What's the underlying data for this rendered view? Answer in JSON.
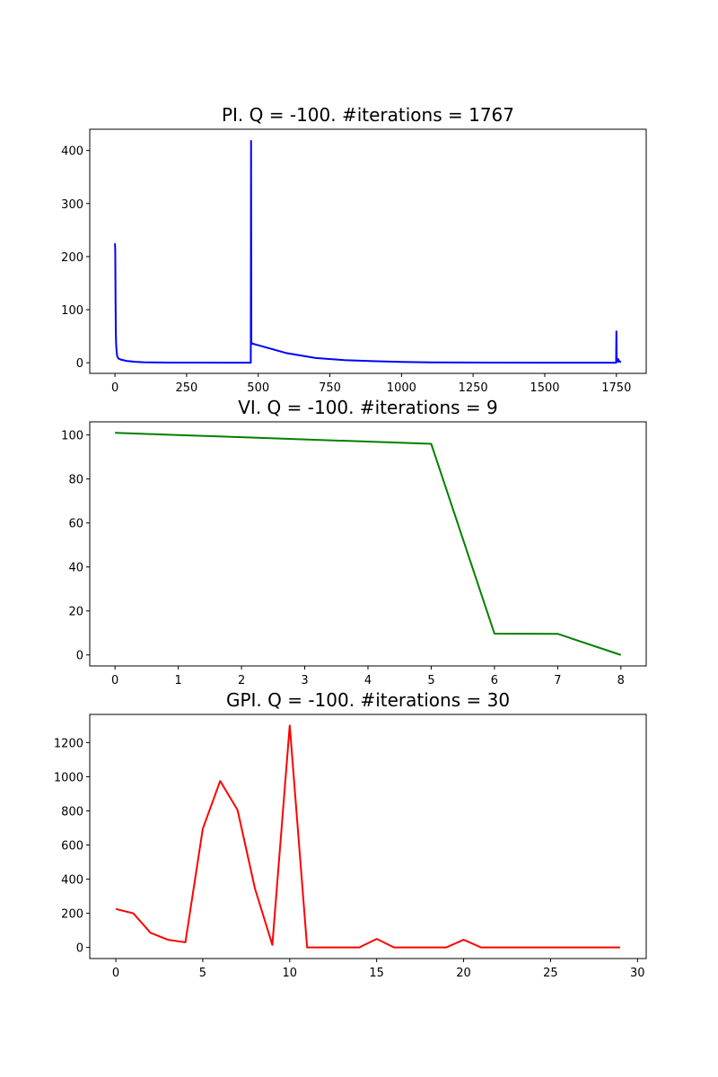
{
  "chart_data": [
    {
      "type": "line",
      "title": "PI. Q = -100. #iterations = 1767",
      "xlabel": "",
      "ylabel": "",
      "xlim": [
        -88,
        1854
      ],
      "ylim": [
        -20,
        440
      ],
      "xticks": [
        0,
        250,
        500,
        750,
        1000,
        1250,
        1500,
        1750
      ],
      "yticks": [
        0,
        100,
        200,
        300,
        400
      ],
      "grid": false,
      "series": [
        {
          "color": "#0000ff",
          "x": [
            0,
            1,
            2,
            3,
            4,
            6,
            8,
            12,
            20,
            40,
            70,
            100,
            150,
            200,
            300,
            400,
            470,
            474,
            475,
            476,
            478,
            480,
            520,
            600,
            700,
            800,
            900,
            1000,
            1100,
            1200,
            1300,
            1500,
            1700,
            1749,
            1750,
            1751,
            1752,
            1753,
            1754,
            1755,
            1756,
            1757,
            1758,
            1760,
            1762,
            1766
          ],
          "y": [
            225,
            212,
            120,
            60,
            35,
            20,
            12,
            8,
            6,
            3.5,
            1.8,
            1.0,
            0.5,
            0.3,
            0.2,
            0.1,
            0.1,
            0.1,
            418,
            35,
            37,
            36,
            30,
            18,
            9,
            5,
            3,
            1.5,
            0.8,
            0.5,
            0.3,
            0.1,
            0.1,
            0.1,
            59,
            4,
            8,
            3,
            6,
            2,
            7,
            2,
            5,
            3,
            2,
            1
          ]
        }
      ]
    },
    {
      "type": "line",
      "title": "VI. Q = -100. #iterations = 9",
      "xlabel": "",
      "ylabel": "",
      "xlim": [
        -0.4,
        8.4
      ],
      "ylim": [
        -5,
        106
      ],
      "xticks": [
        0,
        1,
        2,
        3,
        4,
        5,
        6,
        7,
        8
      ],
      "yticks": [
        0,
        20,
        40,
        60,
        80,
        100
      ],
      "grid": false,
      "series": [
        {
          "color": "#008000",
          "x": [
            0,
            1,
            2,
            3,
            4,
            5,
            6,
            7,
            8
          ],
          "y": [
            101,
            100,
            99,
            98,
            97,
            96,
            9.7,
            9.6,
            0
          ]
        }
      ]
    },
    {
      "type": "line",
      "title": "GPI. Q = -100. #iterations = 30",
      "xlabel": "",
      "ylabel": "",
      "xlim": [
        -1.5,
        30.5
      ],
      "ylim": [
        -65,
        1365
      ],
      "xticks": [
        0,
        5,
        10,
        15,
        20,
        25,
        30
      ],
      "yticks": [
        0,
        200,
        400,
        600,
        800,
        1000,
        1200
      ],
      "grid": false,
      "series": [
        {
          "color": "#ff0000",
          "x": [
            0,
            1,
            2,
            3,
            4,
            5,
            6,
            7,
            8,
            9,
            10,
            11,
            12,
            13,
            14,
            15,
            16,
            17,
            18,
            19,
            20,
            21,
            22,
            23,
            24,
            25,
            26,
            27,
            28,
            29
          ],
          "y": [
            225,
            200,
            85,
            45,
            30,
            695,
            975,
            805,
            345,
            15,
            1300,
            0,
            0,
            0,
            0,
            50,
            0,
            0,
            0,
            0,
            45,
            0,
            0,
            0,
            0,
            0,
            0,
            0,
            0,
            0
          ]
        }
      ]
    }
  ]
}
